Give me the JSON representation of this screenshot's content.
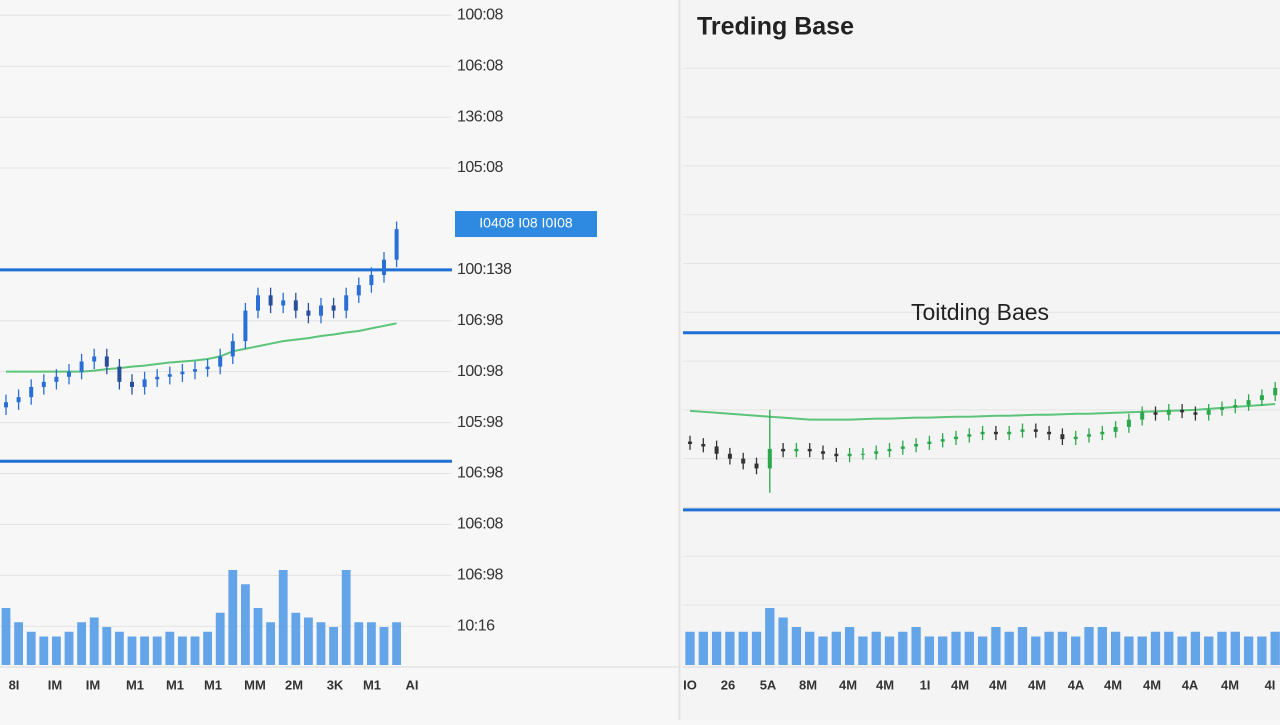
{
  "chart_data": [
    {
      "type": "candlestick",
      "ylim": [
        -0.8,
        12.3
      ],
      "yticks": [
        {
          "value": 12,
          "label": "100:08"
        },
        {
          "value": 11,
          "label": "106:08"
        },
        {
          "value": 10,
          "label": "136:08"
        },
        {
          "value": 9,
          "label": "105:08"
        },
        {
          "value": 7,
          "label": "100:138"
        },
        {
          "value": 6,
          "label": "106:98"
        },
        {
          "value": 5,
          "label": "100:98"
        },
        {
          "value": 4,
          "label": "105:98"
        },
        {
          "value": 3,
          "label": "106:98"
        },
        {
          "value": 2,
          "label": "106:08"
        },
        {
          "value": 1,
          "label": "106:98"
        },
        {
          "value": 0,
          "label": "10:16"
        }
      ],
      "price_badge": {
        "value": 7.9,
        "label": "I0408   I08 I0I08"
      },
      "levels": [
        7.0,
        3.24
      ],
      "up_color": "#2a6fd6",
      "down_color": "#2a4f9a",
      "ma_color": "#5cc47a",
      "level_color": "#1f6fd6",
      "volume_color": "#4a97e6",
      "vlim": [
        0,
        100
      ],
      "open": [
        4.3,
        4.4,
        4.5,
        4.7,
        4.8,
        4.9,
        5.0,
        5.2,
        5.3,
        5.1,
        4.8,
        4.7,
        4.85,
        4.9,
        4.95,
        5.0,
        5.05,
        5.1,
        5.3,
        5.6,
        6.2,
        6.5,
        6.3,
        6.4,
        6.2,
        6.1,
        6.3,
        6.2,
        6.5,
        6.7,
        6.9,
        7.2
      ],
      "high": [
        4.55,
        4.65,
        4.85,
        4.95,
        5.05,
        5.15,
        5.35,
        5.45,
        5.45,
        5.25,
        4.95,
        5.0,
        5.05,
        5.1,
        5.15,
        5.2,
        5.25,
        5.45,
        5.75,
        6.35,
        6.65,
        6.65,
        6.55,
        6.55,
        6.35,
        6.45,
        6.45,
        6.65,
        6.85,
        7.05,
        7.35,
        7.95
      ],
      "low": [
        4.15,
        4.25,
        4.35,
        4.55,
        4.65,
        4.75,
        4.85,
        5.05,
        4.95,
        4.65,
        4.55,
        4.55,
        4.7,
        4.75,
        4.8,
        4.85,
        4.9,
        4.95,
        5.15,
        5.45,
        6.05,
        6.15,
        6.15,
        6.05,
        5.95,
        5.95,
        6.05,
        6.05,
        6.35,
        6.55,
        6.75,
        7.05
      ],
      "close": [
        4.4,
        4.5,
        4.7,
        4.8,
        4.9,
        5.0,
        5.2,
        5.3,
        5.1,
        4.8,
        4.7,
        4.85,
        4.9,
        4.95,
        5.0,
        5.05,
        5.1,
        5.3,
        5.6,
        6.2,
        6.5,
        6.3,
        6.4,
        6.2,
        6.1,
        6.3,
        6.2,
        6.5,
        6.7,
        6.9,
        7.2,
        7.8
      ],
      "ma": [
        5.0,
        5.0,
        5.0,
        5.0,
        5.0,
        5.0,
        5.0,
        5.02,
        5.05,
        5.07,
        5.1,
        5.12,
        5.15,
        5.18,
        5.2,
        5.22,
        5.25,
        5.3,
        5.4,
        5.45,
        5.5,
        5.55,
        5.6,
        5.63,
        5.66,
        5.7,
        5.73,
        5.77,
        5.8,
        5.85,
        5.9,
        5.95
      ],
      "volume": [
        60,
        45,
        35,
        30,
        30,
        35,
        45,
        50,
        40,
        35,
        30,
        30,
        30,
        35,
        30,
        30,
        35,
        55,
        100,
        85,
        60,
        45,
        100,
        55,
        50,
        45,
        40,
        100,
        45,
        45,
        40,
        45
      ],
      "x_labels": [
        "8I",
        "IM",
        "IM",
        "M1",
        "M1",
        "M1",
        "MM",
        "2M",
        "3K",
        "M1",
        "AI"
      ]
    },
    {
      "type": "candlestick",
      "title": "Treding Base",
      "annotation": "Toitding Baes",
      "ylim": [
        -0.27,
        13.4
      ],
      "gridlines": [
        1,
        2,
        3,
        4,
        5,
        6,
        7,
        8,
        9,
        10,
        11,
        12
      ],
      "levels": [
        6.58,
        2.95
      ],
      "up_color": "#2aa84a",
      "down_color": "#333333",
      "ma_color": "#5cc47a",
      "level_color": "#1f6fd6",
      "volume_color": "#4a97e6",
      "vlim": [
        0,
        100
      ],
      "open": [
        4.35,
        4.3,
        4.25,
        4.1,
        4.0,
        3.9,
        3.8,
        4.2,
        4.15,
        4.2,
        4.15,
        4.1,
        4.05,
        4.1,
        4.1,
        4.15,
        4.2,
        4.25,
        4.3,
        4.35,
        4.4,
        4.45,
        4.5,
        4.55,
        4.5,
        4.55,
        4.6,
        4.55,
        4.5,
        4.4,
        4.45,
        4.5,
        4.55,
        4.65,
        4.8,
        4.95,
        4.9,
        5.0,
        4.95,
        4.9,
        5.0,
        5.05,
        5.1,
        5.2,
        5.3
      ],
      "high": [
        4.47,
        4.42,
        4.37,
        4.22,
        4.12,
        4.02,
        5.0,
        4.32,
        4.32,
        4.32,
        4.27,
        4.22,
        4.22,
        4.22,
        4.27,
        4.32,
        4.37,
        4.42,
        4.47,
        4.52,
        4.57,
        4.62,
        4.67,
        4.67,
        4.67,
        4.72,
        4.72,
        4.67,
        4.62,
        4.57,
        4.62,
        4.67,
        4.77,
        4.92,
        5.07,
        5.07,
        5.12,
        5.12,
        5.07,
        5.12,
        5.17,
        5.22,
        5.32,
        5.42,
        5.57
      ],
      "low": [
        4.18,
        4.13,
        3.98,
        3.88,
        3.78,
        3.68,
        3.3,
        4.03,
        4.03,
        4.03,
        3.98,
        3.93,
        3.93,
        3.98,
        3.98,
        4.03,
        4.08,
        4.13,
        4.18,
        4.23,
        4.28,
        4.33,
        4.38,
        4.38,
        4.38,
        4.43,
        4.43,
        4.38,
        4.28,
        4.28,
        4.33,
        4.38,
        4.43,
        4.53,
        4.68,
        4.78,
        4.78,
        4.83,
        4.78,
        4.78,
        4.88,
        4.93,
        4.98,
        5.08,
        5.18
      ],
      "close": [
        4.3,
        4.25,
        4.1,
        4.0,
        3.9,
        3.8,
        4.2,
        4.15,
        4.2,
        4.15,
        4.1,
        4.05,
        4.1,
        4.1,
        4.15,
        4.2,
        4.25,
        4.3,
        4.35,
        4.4,
        4.45,
        4.5,
        4.55,
        4.5,
        4.55,
        4.6,
        4.55,
        4.5,
        4.4,
        4.45,
        4.5,
        4.55,
        4.65,
        4.8,
        4.95,
        4.9,
        5.0,
        4.95,
        4.9,
        5.0,
        5.05,
        5.1,
        5.2,
        5.3,
        5.45
      ],
      "ma": [
        4.98,
        4.96,
        4.94,
        4.92,
        4.9,
        4.88,
        4.86,
        4.84,
        4.82,
        4.8,
        4.8,
        4.8,
        4.8,
        4.81,
        4.82,
        4.82,
        4.83,
        4.84,
        4.84,
        4.85,
        4.86,
        4.86,
        4.87,
        4.88,
        4.88,
        4.89,
        4.9,
        4.9,
        4.91,
        4.92,
        4.92,
        4.93,
        4.94,
        4.95,
        4.96,
        4.97,
        4.98,
        4.99,
        5.0,
        5.02,
        5.04,
        5.06,
        5.08,
        5.1,
        5.12
      ],
      "volume": [
        35,
        35,
        35,
        35,
        35,
        35,
        60,
        50,
        40,
        35,
        30,
        35,
        40,
        30,
        35,
        30,
        35,
        40,
        30,
        30,
        35,
        35,
        30,
        40,
        35,
        40,
        30,
        35,
        35,
        30,
        40,
        40,
        35,
        30,
        30,
        35,
        35,
        30,
        35,
        30,
        35,
        35,
        30,
        30,
        35
      ],
      "x_labels": [
        "IO",
        "26",
        "5A",
        "8M",
        "4M",
        "4M",
        "1I",
        "4M",
        "4M",
        "4M",
        "4A",
        "4M",
        "4M",
        "4A",
        "4M",
        "4I"
      ]
    }
  ]
}
